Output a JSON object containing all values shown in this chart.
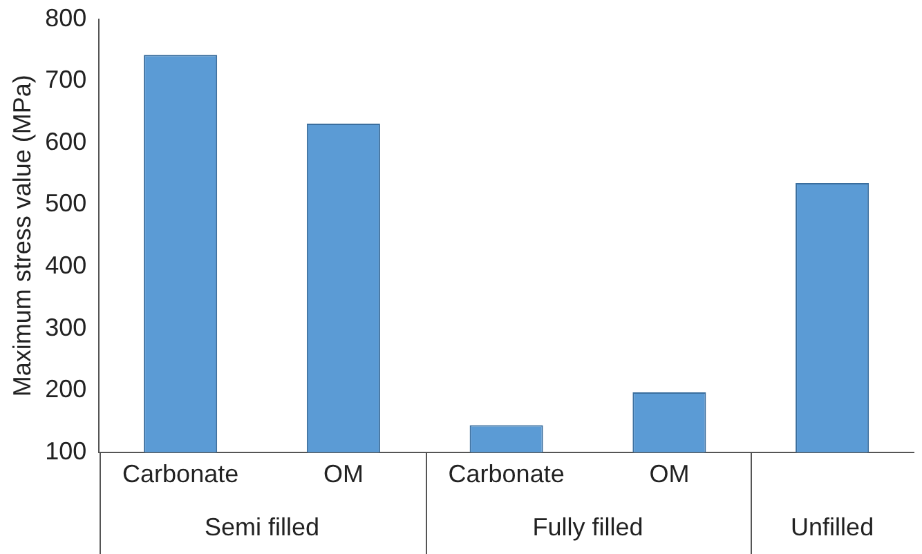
{
  "chart_data": {
    "type": "bar",
    "ylabel": "Maximum stress value (MPa)",
    "categories": [
      "Carbonate",
      "OM",
      "Carbonate",
      "OM",
      null
    ],
    "values": [
      742,
      631,
      144,
      197,
      535
    ],
    "color": "#5b9bd5",
    "ylim": [
      100,
      800
    ],
    "yticks": [
      100,
      200,
      300,
      400,
      500,
      600,
      700,
      800
    ],
    "grid": false,
    "legend": false,
    "annotations": [
      "Semi filled",
      "Fully filled",
      "Unfilled"
    ]
  }
}
